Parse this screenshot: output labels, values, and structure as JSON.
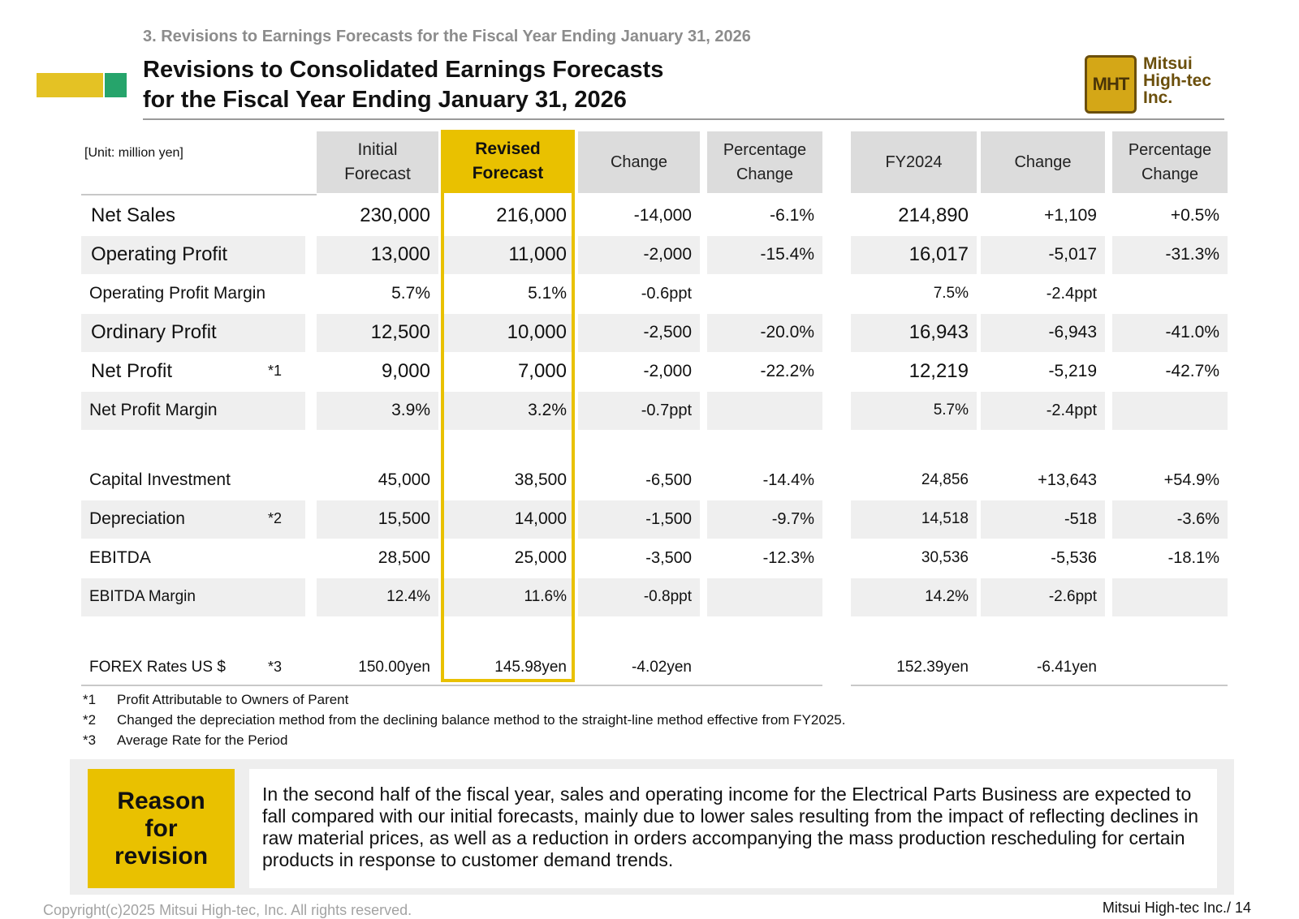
{
  "header": {
    "section_label": "3. Revisions to Earnings Forecasts for the Fiscal Year Ending January 31, 2026",
    "title_line1": "Revisions to Consolidated Earnings Forecasts",
    "title_line2": "for the Fiscal Year Ending January 31, 2026",
    "logo_mark": "MHT",
    "logo_name1": "Mitsui",
    "logo_name2": "High-tec",
    "logo_name3": "Inc."
  },
  "colors": {
    "accent_yellow": "#e9c100",
    "deco_yellow": "#e4c224",
    "deco_green": "#26a46b",
    "header_gray": "#dcdcdc",
    "stripe_gray": "#efefef"
  },
  "table": {
    "unit_label": "[Unit: million yen]",
    "columns": {
      "initial_1": "Initial",
      "initial_2": "Forecast",
      "revised_1": "Revised",
      "revised_2": "Forecast",
      "change": "Change",
      "pct_1": "Percentage",
      "pct_2": "Change",
      "fy2024": "FY2024",
      "change2": "Change",
      "pct2_1": "Percentage",
      "pct2_2": "Change"
    },
    "rows": [
      {
        "label": "Net Sales",
        "note": "",
        "initial": "230,000",
        "revised": "216,000",
        "change": "-14,000",
        "pct": "-6.1%",
        "fy2024": "214,890",
        "change2": "+1,109",
        "pct2": "+0.5%"
      },
      {
        "label": "Operating Profit",
        "note": "",
        "initial": "13,000",
        "revised": "11,000",
        "change": "-2,000",
        "pct": "-15.4%",
        "fy2024": "16,017",
        "change2": "-5,017",
        "pct2": "-31.3%"
      },
      {
        "label": "Operating Profit Margin",
        "note": "",
        "initial": "5.7%",
        "revised": "5.1%",
        "change": "-0.6ppt",
        "pct": "",
        "fy2024": "7.5%",
        "change2": "-2.4ppt",
        "pct2": ""
      },
      {
        "label": "Ordinary Profit",
        "note": "",
        "initial": "12,500",
        "revised": "10,000",
        "change": "-2,500",
        "pct": "-20.0%",
        "fy2024": "16,943",
        "change2": "-6,943",
        "pct2": "-41.0%"
      },
      {
        "label": "Net Profit",
        "note": "*1",
        "initial": "9,000",
        "revised": "7,000",
        "change": "-2,000",
        "pct": "-22.2%",
        "fy2024": "12,219",
        "change2": "-5,219",
        "pct2": "-42.7%"
      },
      {
        "label": "Net Profit Margin",
        "note": "",
        "initial": "3.9%",
        "revised": "3.2%",
        "change": "-0.7ppt",
        "pct": "",
        "fy2024": "5.7%",
        "change2": "-2.4ppt",
        "pct2": ""
      },
      {
        "label": "Capital Investment",
        "note": "",
        "initial": "45,000",
        "revised": "38,500",
        "change": "-6,500",
        "pct": "-14.4%",
        "fy2024": "24,856",
        "change2": "+13,643",
        "pct2": "+54.9%"
      },
      {
        "label": "Depreciation",
        "note": "*2",
        "initial": "15,500",
        "revised": "14,000",
        "change": "-1,500",
        "pct": "-9.7%",
        "fy2024": "14,518",
        "change2": "-518",
        "pct2": "-3.6%"
      },
      {
        "label": "EBITDA",
        "note": "",
        "initial": "28,500",
        "revised": "25,000",
        "change": "-3,500",
        "pct": "-12.3%",
        "fy2024": "30,536",
        "change2": "-5,536",
        "pct2": "-18.1%"
      },
      {
        "label": "EBITDA Margin",
        "note": "",
        "initial": "12.4%",
        "revised": "11.6%",
        "change": "-0.8ppt",
        "pct": "",
        "fy2024": "14.2%",
        "change2": "-2.6ppt",
        "pct2": ""
      },
      {
        "label": "FOREX Rates US $",
        "note": "*3",
        "initial": "150.00yen",
        "revised": "145.98yen",
        "change": "-4.02yen",
        "pct": "",
        "fy2024": "152.39yen",
        "change2": "-6.41yen",
        "pct2": ""
      }
    ]
  },
  "footnotes": [
    {
      "mark": "*1",
      "text": "Profit Attributable to Owners of Parent"
    },
    {
      "mark": "*2",
      "text": "Changed the depreciation method from the declining balance method to the straight-line method effective from FY2025."
    },
    {
      "mark": "*3",
      "text": "Average Rate for the Period"
    }
  ],
  "reason": {
    "label1": "Reason",
    "label2": "for",
    "label3": "revision",
    "text": "In the second half of the fiscal year, sales and operating income for the Electrical Parts Business are expected to fall compared with our initial forecasts, mainly due to lower sales resulting from the impact of reflecting declines in raw material prices, as well as a reduction in orders accompanying the mass production rescheduling for certain products in response to customer demand trends."
  },
  "footer": {
    "copyright": "Copyright(c)2025 Mitsui High-tec, Inc. All rights reserved.",
    "page": "Mitsui High-tec Inc./ 14"
  }
}
